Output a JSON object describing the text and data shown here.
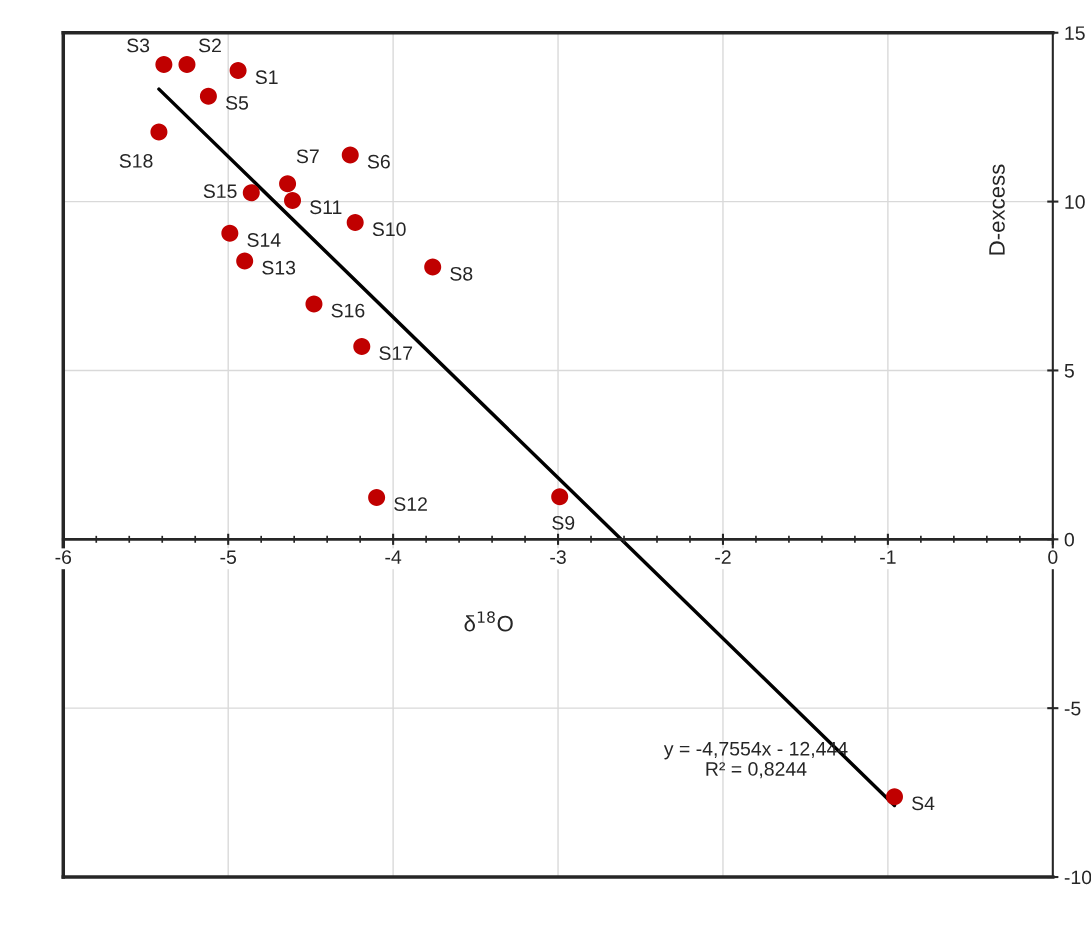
{
  "chart_data": {
    "type": "scatter",
    "xlabel": "δ$^{18}$O",
    "ylabel": "D-excess",
    "xlim": [
      -6,
      0
    ],
    "ylim": [
      -10,
      15
    ],
    "xticks": [
      -6,
      -5,
      -4,
      -3,
      -2,
      -1,
      0
    ],
    "yticks": [
      -10,
      -5,
      0,
      5,
      10,
      15
    ],
    "grid": true,
    "series": [
      {
        "marker": "circle",
        "color": "#c00000",
        "x": [
          -4.94,
          -5.25,
          -5.39,
          -0.96,
          -5.12,
          -4.26,
          -4.64,
          -3.76,
          -2.99,
          -4.23,
          -4.61,
          -4.1,
          -4.9,
          -4.99,
          -4.86,
          -4.48,
          -4.19,
          -5.42
        ],
        "values": [
          13.88,
          14.06,
          14.06,
          -7.62,
          13.12,
          11.38,
          10.53,
          8.06,
          1.26,
          9.38,
          10.03,
          1.24,
          8.24,
          9.06,
          10.26,
          6.97,
          5.71,
          12.06
        ]
      },
      {
        "type": "line",
        "color": "#000000",
        "x": [
          -5.42,
          -0.96
        ],
        "values": [
          13.33,
          -7.88
        ]
      }
    ],
    "annotations": [
      {
        "text": "S1",
        "x": -4.94,
        "y": 13.88
      },
      {
        "text": "S2",
        "x": -5.25,
        "y": 14.06
      },
      {
        "text": "S3",
        "x": -5.39,
        "y": 14.06
      },
      {
        "text": "S4",
        "x": -0.96,
        "y": -7.62
      },
      {
        "text": "S5",
        "x": -5.12,
        "y": 13.12
      },
      {
        "text": "S6",
        "x": -4.26,
        "y": 11.38
      },
      {
        "text": "S7",
        "x": -4.64,
        "y": 10.53
      },
      {
        "text": "S8",
        "x": -3.76,
        "y": 8.06
      },
      {
        "text": "S9",
        "x": -2.99,
        "y": 1.26
      },
      {
        "text": "S10",
        "x": -4.23,
        "y": 9.38
      },
      {
        "text": "S11",
        "x": -4.61,
        "y": 10.03
      },
      {
        "text": "S12",
        "x": -4.1,
        "y": 1.24
      },
      {
        "text": "S13",
        "x": -4.9,
        "y": 8.24
      },
      {
        "text": "S14",
        "x": -4.99,
        "y": 9.06
      },
      {
        "text": "S15",
        "x": -4.86,
        "y": 10.26
      },
      {
        "text": "S16",
        "x": -4.48,
        "y": 6.97
      },
      {
        "text": "S17",
        "x": -4.19,
        "y": 5.71
      },
      {
        "text": "S18",
        "x": -5.42,
        "y": 12.06
      },
      "y = -4,7554x - 12,444",
      "R² = 0,8244"
    ]
  }
}
